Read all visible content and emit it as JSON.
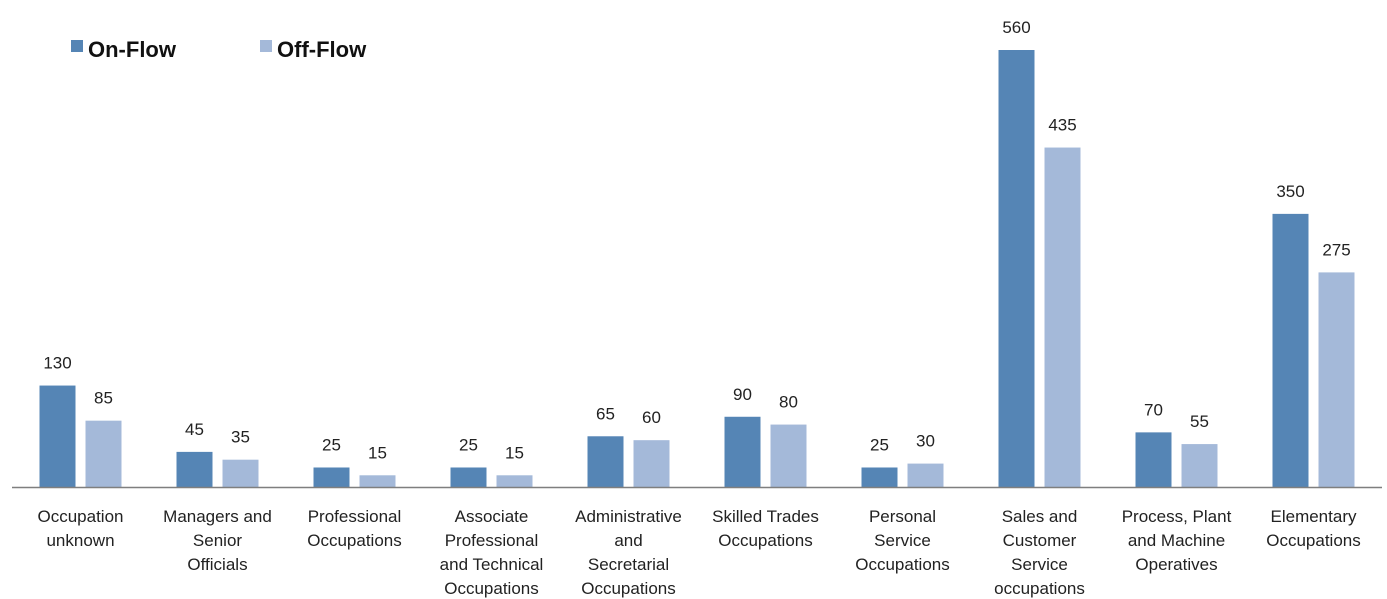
{
  "chart_data": {
    "type": "bar",
    "categories": [
      [
        "Occupation",
        "unknown"
      ],
      [
        "Managers and",
        "Senior",
        "Officials"
      ],
      [
        "Professional",
        "Occupations"
      ],
      [
        "Associate",
        "Professional",
        "and Technical",
        "Occupations"
      ],
      [
        "Administrative",
        "and",
        "Secretarial",
        "Occupations"
      ],
      [
        "Skilled Trades",
        "Occupations"
      ],
      [
        "Personal",
        "Service",
        "Occupations"
      ],
      [
        "Sales and",
        "Customer",
        "Service",
        "occupations"
      ],
      [
        "Process, Plant",
        "and Machine",
        "Operatives"
      ],
      [
        "Elementary",
        "Occupations"
      ]
    ],
    "series": [
      {
        "name": "On-Flow",
        "color": "#5585b5",
        "values": [
          130,
          45,
          25,
          25,
          65,
          90,
          25,
          560,
          70,
          350
        ]
      },
      {
        "name": "Off-Flow",
        "color": "#a4b9d9",
        "values": [
          85,
          35,
          15,
          15,
          60,
          80,
          30,
          435,
          55,
          275
        ]
      }
    ],
    "ylim": [
      0,
      560
    ],
    "grid": false,
    "legend_position": "top-left",
    "data_labels": true
  }
}
